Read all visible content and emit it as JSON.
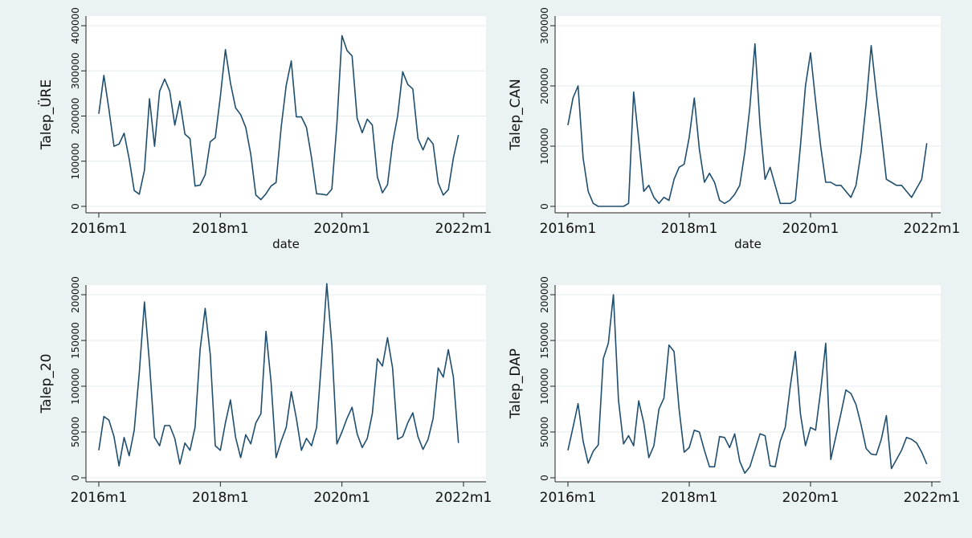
{
  "chart_data": [
    {
      "type": "line",
      "ylabel": "Talep_ÜRE",
      "xlabel": "date",
      "x_start": "2016m1",
      "x_ticks": [
        "2016m1",
        "2018m1",
        "2020m1",
        "2022m1"
      ],
      "y_ticks": [
        "0",
        "100000",
        "200000",
        "300000",
        "400000"
      ],
      "ylim": [
        -5000,
        420000
      ],
      "grid": true,
      "values": [
        205000,
        290000,
        215000,
        133000,
        138000,
        162000,
        105000,
        35000,
        27000,
        80000,
        238000,
        133000,
        255000,
        282000,
        255000,
        180000,
        233000,
        160000,
        150000,
        45000,
        47000,
        70000,
        143000,
        152000,
        243000,
        347000,
        273000,
        218000,
        203000,
        175000,
        115000,
        25000,
        15000,
        28000,
        45000,
        53000,
        175000,
        268000,
        322000,
        198000,
        198000,
        175000,
        108000,
        28000,
        27000,
        25000,
        38000,
        183000,
        378000,
        345000,
        333000,
        195000,
        163000,
        193000,
        180000,
        65000,
        30000,
        48000,
        140000,
        200000,
        298000,
        270000,
        260000,
        150000,
        125000,
        152000,
        138000,
        52000,
        25000,
        37000,
        107000,
        158000
      ]
    },
    {
      "type": "line",
      "ylabel": "Talep_CAN",
      "xlabel": "date",
      "x_start": "2016m1",
      "x_ticks": [
        "2016m1",
        "2018m1",
        "2020m1",
        "2022m1"
      ],
      "y_ticks": [
        "0",
        "100000",
        "200000",
        "300000"
      ],
      "ylim": [
        -5000,
        310000
      ],
      "grid": true,
      "values": [
        135000,
        180000,
        200000,
        80000,
        25000,
        5000,
        0,
        0,
        0,
        0,
        0,
        0,
        5000,
        190000,
        110000,
        25000,
        35000,
        15000,
        5000,
        15000,
        10000,
        45000,
        65000,
        70000,
        115000,
        180000,
        95000,
        40000,
        55000,
        40000,
        10000,
        5000,
        10000,
        20000,
        35000,
        90000,
        165000,
        270000,
        135000,
        45000,
        65000,
        35000,
        5000,
        5000,
        5000,
        10000,
        100000,
        200000,
        255000,
        175000,
        100000,
        40000,
        40000,
        35000,
        35000,
        25000,
        15000,
        35000,
        90000,
        170000,
        267000,
        190000,
        120000,
        45000,
        40000,
        35000,
        35000,
        25000,
        15000,
        30000,
        45000,
        105000
      ]
    },
    {
      "type": "line",
      "ylabel": "Talep_20",
      "xlabel": "",
      "x_start": "2016m1",
      "x_ticks": [
        "2016m1",
        "2018m1",
        "2020m1",
        "2022m1"
      ],
      "y_ticks": [
        "0",
        "50000",
        "100000",
        "150000",
        "200000"
      ],
      "ylim": [
        -3000,
        222000
      ],
      "grid": true,
      "values": [
        30000,
        67000,
        63000,
        45000,
        13000,
        44000,
        24000,
        52000,
        115000,
        192000,
        125000,
        44000,
        35000,
        57000,
        57000,
        43000,
        15000,
        38000,
        30000,
        55000,
        140000,
        185000,
        135000,
        35000,
        30000,
        60000,
        85000,
        44000,
        22000,
        47000,
        37000,
        60000,
        70000,
        160000,
        105000,
        22000,
        40000,
        55000,
        94000,
        65000,
        30000,
        43000,
        35000,
        55000,
        130000,
        212000,
        145000,
        37000,
        50000,
        65000,
        77000,
        48000,
        33000,
        43000,
        70000,
        130000,
        122000,
        153000,
        120000,
        42000,
        45000,
        60000,
        71000,
        45000,
        31000,
        42000,
        65000,
        120000,
        110000,
        140000,
        110000,
        38000
      ]
    },
    {
      "type": "line",
      "ylabel": "Talep_DAP",
      "xlabel": "",
      "x_start": "2016m1",
      "x_ticks": [
        "2016m1",
        "2018m1",
        "2020m1",
        "2022m1"
      ],
      "y_ticks": [
        "0",
        "50000",
        "100000",
        "150000",
        "200000"
      ],
      "ylim": [
        -3000,
        207000
      ],
      "grid": true,
      "values": [
        30000,
        55000,
        81000,
        40000,
        16000,
        29000,
        36000,
        130000,
        147000,
        200000,
        85000,
        37000,
        46000,
        35000,
        84000,
        60000,
        22000,
        35000,
        75000,
        87000,
        145000,
        138000,
        75000,
        28000,
        33000,
        52000,
        50000,
        30000,
        12000,
        12000,
        45000,
        44000,
        33000,
        48000,
        18000,
        5000,
        12000,
        30000,
        48000,
        46000,
        13000,
        12000,
        40000,
        55000,
        100000,
        138000,
        70000,
        35000,
        55000,
        52000,
        95000,
        147000,
        20000,
        45000,
        70000,
        96000,
        92000,
        80000,
        58000,
        32000,
        26000,
        25000,
        42000,
        68000,
        10000,
        20000,
        30000,
        44000,
        42000,
        38000,
        28000,
        15000
      ]
    }
  ]
}
